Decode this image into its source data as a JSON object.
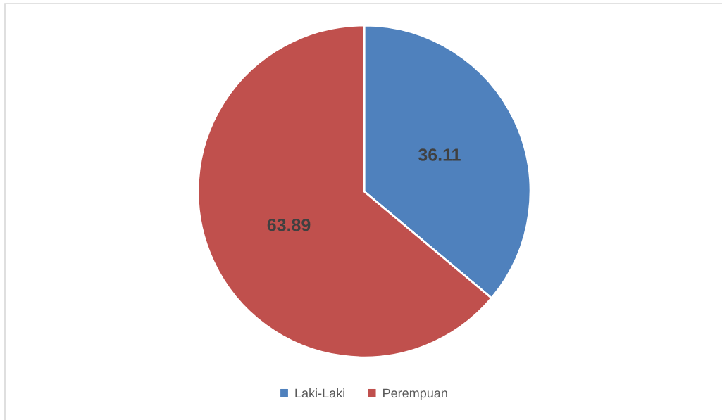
{
  "chart_data": {
    "type": "pie",
    "categories": [
      "Laki-Laki",
      "Perempuan"
    ],
    "values": [
      36.11,
      63.89
    ],
    "colors": [
      "#4f81bd",
      "#c0504d"
    ],
    "data_labels": true,
    "legend": "bottom"
  }
}
